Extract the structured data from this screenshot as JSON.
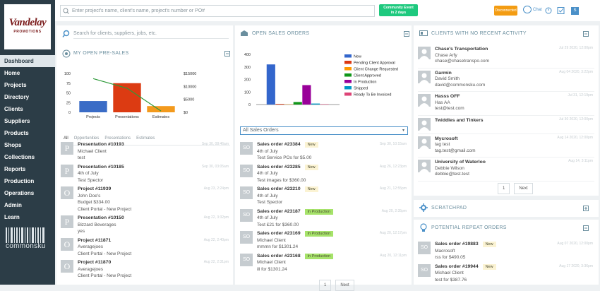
{
  "logo": {
    "name": "Vandelay",
    "tagline": "PROMOTIONS"
  },
  "nav": [
    "Dashboard",
    "Home",
    "Projects",
    "Directory",
    "Clients",
    "Suppliers",
    "Products",
    "Shops",
    "Collections",
    "Reports",
    "Production",
    "Operations",
    "Admin",
    "Learn"
  ],
  "brand": "commonsku",
  "topbar": {
    "search_placeholder": "Enter project's name, client's name, project's number or PO#",
    "event": "Community Event",
    "event_when": "in 2 days",
    "status": "Disconnected",
    "chat": "Chat",
    "avatar": "S"
  },
  "pre_sales": {
    "search_placeholder": "Search for clients, suppliers, jobs, etc.",
    "title": "MY OPEN PRE-SALES",
    "chart": {
      "type": "bar",
      "categories": [
        "Projects",
        "Presentations",
        "Estimates"
      ],
      "series": [
        {
          "type": "bar",
          "colors": [
            "#3a6cc6",
            "#dc3b12",
            "#f39a1d"
          ],
          "values": [
            29,
            75,
            16
          ]
        },
        {
          "type": "line",
          "axis": "y2",
          "color": "#2f9a3a",
          "values": [
            13000,
            9300,
            500
          ]
        }
      ],
      "ylim": [
        0,
        100
      ],
      "yticks": [
        0,
        25,
        50,
        75,
        100
      ],
      "y2lim": [
        0,
        15000
      ],
      "y2ticks": [
        {
          "value": 0,
          "label": "$0"
        },
        {
          "value": 5000,
          "label": "$5000"
        },
        {
          "value": 10000,
          "label": "$10000"
        },
        {
          "value": 15000,
          "label": "$15000"
        }
      ]
    },
    "tabs": [
      "All",
      "Opportunities",
      "Presentations",
      "Estimates"
    ],
    "items": [
      {
        "icon": "P",
        "title": "Presentation #10193",
        "lines": [
          "Michael Client",
          "test"
        ],
        "date": "Sep 30, 08:46am"
      },
      {
        "icon": "P",
        "title": "Presentation #10185",
        "lines": [
          "4th of July",
          "Test Spector"
        ],
        "date": "Sep 30, 03:05am"
      },
      {
        "icon": "O",
        "title": "Project #11939",
        "lines": [
          "John Doe's",
          "Budget $334.00",
          "Client Portal - New Project"
        ],
        "date": "Aug 23, 2:24pm"
      },
      {
        "icon": "P",
        "title": "Presentation #10150",
        "lines": [
          "Bizzard Beverages",
          "yes"
        ],
        "date": "Aug 22, 3:32pm"
      },
      {
        "icon": "O",
        "title": "Project #11871",
        "lines": [
          "Averagejoes",
          "Client Portal - New Project"
        ],
        "date": "Aug 22, 2:40pm"
      },
      {
        "icon": "O",
        "title": "Project #11870",
        "lines": [
          "Averagejoes",
          "Client Portal - New Project"
        ],
        "date": "Aug 22, 2:31pm"
      }
    ]
  },
  "sales_orders": {
    "title": "OPEN SALES ORDERS",
    "chart": {
      "type": "bar",
      "categories": [
        null
      ],
      "series": [
        {
          "name": "New",
          "color": "#3366cc",
          "values": [
            320
          ]
        },
        {
          "name": "Pending Client Approval",
          "color": "#dc3912",
          "values": [
            5
          ]
        },
        {
          "name": "Client Change Requested",
          "color": "#ff9900",
          "values": [
            2
          ]
        },
        {
          "name": "Client Approved",
          "color": "#109618",
          "values": [
            20
          ]
        },
        {
          "name": "In Production",
          "color": "#990099",
          "values": [
            155
          ]
        },
        {
          "name": "Shipped",
          "color": "#0099c6",
          "values": [
            8
          ]
        },
        {
          "name": "Ready To Be Invoiced",
          "color": "#dd4477",
          "values": [
            3
          ]
        }
      ],
      "ylim": [
        0,
        400
      ],
      "yticks": [
        0,
        100,
        200,
        300,
        400
      ],
      "legend": "right"
    },
    "filter": "All Sales Orders",
    "items": [
      {
        "icon": "SO",
        "title": "Sales order #23384",
        "status": "New",
        "status_color": "#fbf3d3",
        "lines": [
          "4th of July",
          "Test Service POs for $5.00"
        ],
        "date": "Sep 30, 10:15am"
      },
      {
        "icon": "SO",
        "title": "Sales order #23285",
        "status": "New",
        "status_color": "#fbf3d3",
        "lines": [
          "4th of July",
          "Test images for $360.00"
        ],
        "date": "Aug 26, 12:23pm"
      },
      {
        "icon": "SO",
        "title": "Sales order #23210",
        "status": "New",
        "status_color": "#fbf3d3",
        "lines": [
          "4th of July",
          "Test Spector"
        ],
        "date": "Aug 21, 12:55pm"
      },
      {
        "icon": "SO",
        "title": "Sales order #23187",
        "status": "In Production",
        "status_color": "#a6e36a",
        "lines": [
          "4th of July",
          "Test £21 for $360.00"
        ],
        "date": "Aug 20, 2:35pm"
      },
      {
        "icon": "SO",
        "title": "Sales order #23169",
        "status": "In Production",
        "status_color": "#a6e36a",
        "lines": [
          "Michael Client",
          "mmmn for $1301.24"
        ],
        "date": "Aug 20, 12:17pm"
      },
      {
        "icon": "SO",
        "title": "Sales order #23168",
        "status": "In Production",
        "status_color": "#a6e36a",
        "lines": [
          "Michael Client",
          "ill for $1301.24"
        ],
        "date": "Aug 20, 12:11pm"
      }
    ],
    "pagination": [
      "1",
      "Next"
    ]
  },
  "clients": {
    "title": "CLIENTS WITH NO RECENT ACTIVITY",
    "items": [
      {
        "name": "Chase's Transportation",
        "lines": [
          "Chase Arfy",
          "chase@chasetranspo.com"
        ],
        "date": "Jul 29 2020, 12:00pm"
      },
      {
        "name": "Garmin",
        "lines": [
          "David Smith",
          "david@commonsku.com"
        ],
        "date": "Aug 04 2020, 3:22pm"
      },
      {
        "name": "Hasss OFF",
        "lines": [
          "Has AA",
          "test@test.com"
        ],
        "date": "Jul 31, 12:19pm"
      },
      {
        "name": "Twiddles and Tinkers",
        "lines": [],
        "date": "Jul 30 2020, 12:00pm"
      },
      {
        "name": "Mycrosoft",
        "lines": [
          "tag test",
          "tag.test@gmail.com"
        ],
        "date": "Aug 14 2020, 12:00pm"
      },
      {
        "name": "University of Waterloo",
        "lines": [
          "Debbie Wilson",
          "debbie@test.test"
        ],
        "date": "Aug 14, 3:11pm"
      }
    ],
    "pagination": [
      "1",
      "Next"
    ]
  },
  "scratchpad": {
    "title": "SCRATCHPAD"
  },
  "repeat_orders": {
    "title": "POTENTIAL REPEAT ORDERS",
    "items": [
      {
        "icon": "SO",
        "title": "Sales order #19883",
        "status": "New",
        "status_color": "#fbf3d3",
        "lines": [
          "Macrosoft",
          "rss for $490.05"
        ],
        "date": "Aug 07 2020, 12:00pm"
      },
      {
        "icon": "SO",
        "title": "Sales order #19944",
        "status": "New",
        "status_color": "#fbf3d3",
        "lines": [
          "Michael Client",
          "test for $387.76"
        ],
        "date": "Aug 17 2020, 3:36pm"
      }
    ]
  }
}
